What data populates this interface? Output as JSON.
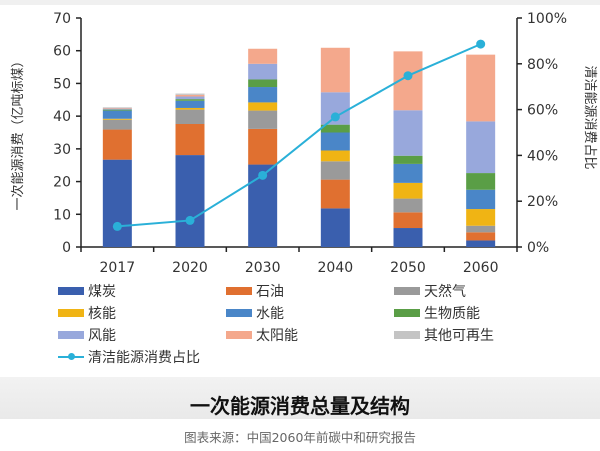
{
  "chart_data": {
    "type": "bar",
    "stacked": true,
    "title": "一次能源消费总量及结构",
    "categories": [
      "2017",
      "2020",
      "2030",
      "2040",
      "2050",
      "2060"
    ],
    "ylabel": "一次能源消费（亿吨标煤）",
    "ylim": [
      0,
      70
    ],
    "yticks": [
      0,
      10,
      20,
      30,
      40,
      50,
      60,
      70
    ],
    "y2label": "清洁能源消费占比",
    "y2lim": [
      0,
      100
    ],
    "y2ticks": [
      "0%",
      "20%",
      "40%",
      "60%",
      "80%",
      "100%"
    ],
    "grid": false,
    "legend_placement": "bottom",
    "series": [
      {
        "name": "煤炭",
        "color": "#3a5fae",
        "values": [
          26.7,
          28.1,
          25.2,
          11.8,
          5.8,
          2.0
        ]
      },
      {
        "name": "石油",
        "color": "#e07030",
        "values": [
          9.2,
          9.5,
          10.9,
          8.8,
          4.8,
          2.5
        ]
      },
      {
        "name": "天然气",
        "color": "#9a9a9a",
        "values": [
          3.0,
          4.4,
          5.6,
          5.6,
          4.2,
          2.0
        ]
      },
      {
        "name": "核能",
        "color": "#f0b414",
        "values": [
          0.3,
          0.5,
          2.5,
          3.3,
          4.8,
          5.1
        ]
      },
      {
        "name": "水能",
        "color": "#4a86c8",
        "values": [
          2.5,
          2.2,
          4.7,
          5.5,
          5.8,
          5.9
        ]
      },
      {
        "name": "生物质能",
        "color": "#5a9e46",
        "values": [
          0.3,
          0.5,
          2.3,
          2.4,
          2.5,
          5.1
        ]
      },
      {
        "name": "风能",
        "color": "#98a8dc",
        "values": [
          0.3,
          0.8,
          4.8,
          9.9,
          13.9,
          15.8
        ]
      },
      {
        "name": "太阳能",
        "color": "#f4a88c",
        "values": [
          0.2,
          0.5,
          4.6,
          13.6,
          18.0,
          20.4
        ]
      },
      {
        "name": "其他可再生",
        "color": "#c4c4c4",
        "values": [
          0.2,
          0.4,
          0,
          0,
          0,
          0
        ]
      }
    ],
    "line": {
      "name": "清洁能源消费占比",
      "color": "#2ab0d8",
      "axis": "right",
      "values": [
        9.0,
        11.6,
        31.3,
        56.8,
        74.8,
        88.6
      ]
    }
  },
  "source": "图表来源：中国2060年前碳中和研究报告"
}
